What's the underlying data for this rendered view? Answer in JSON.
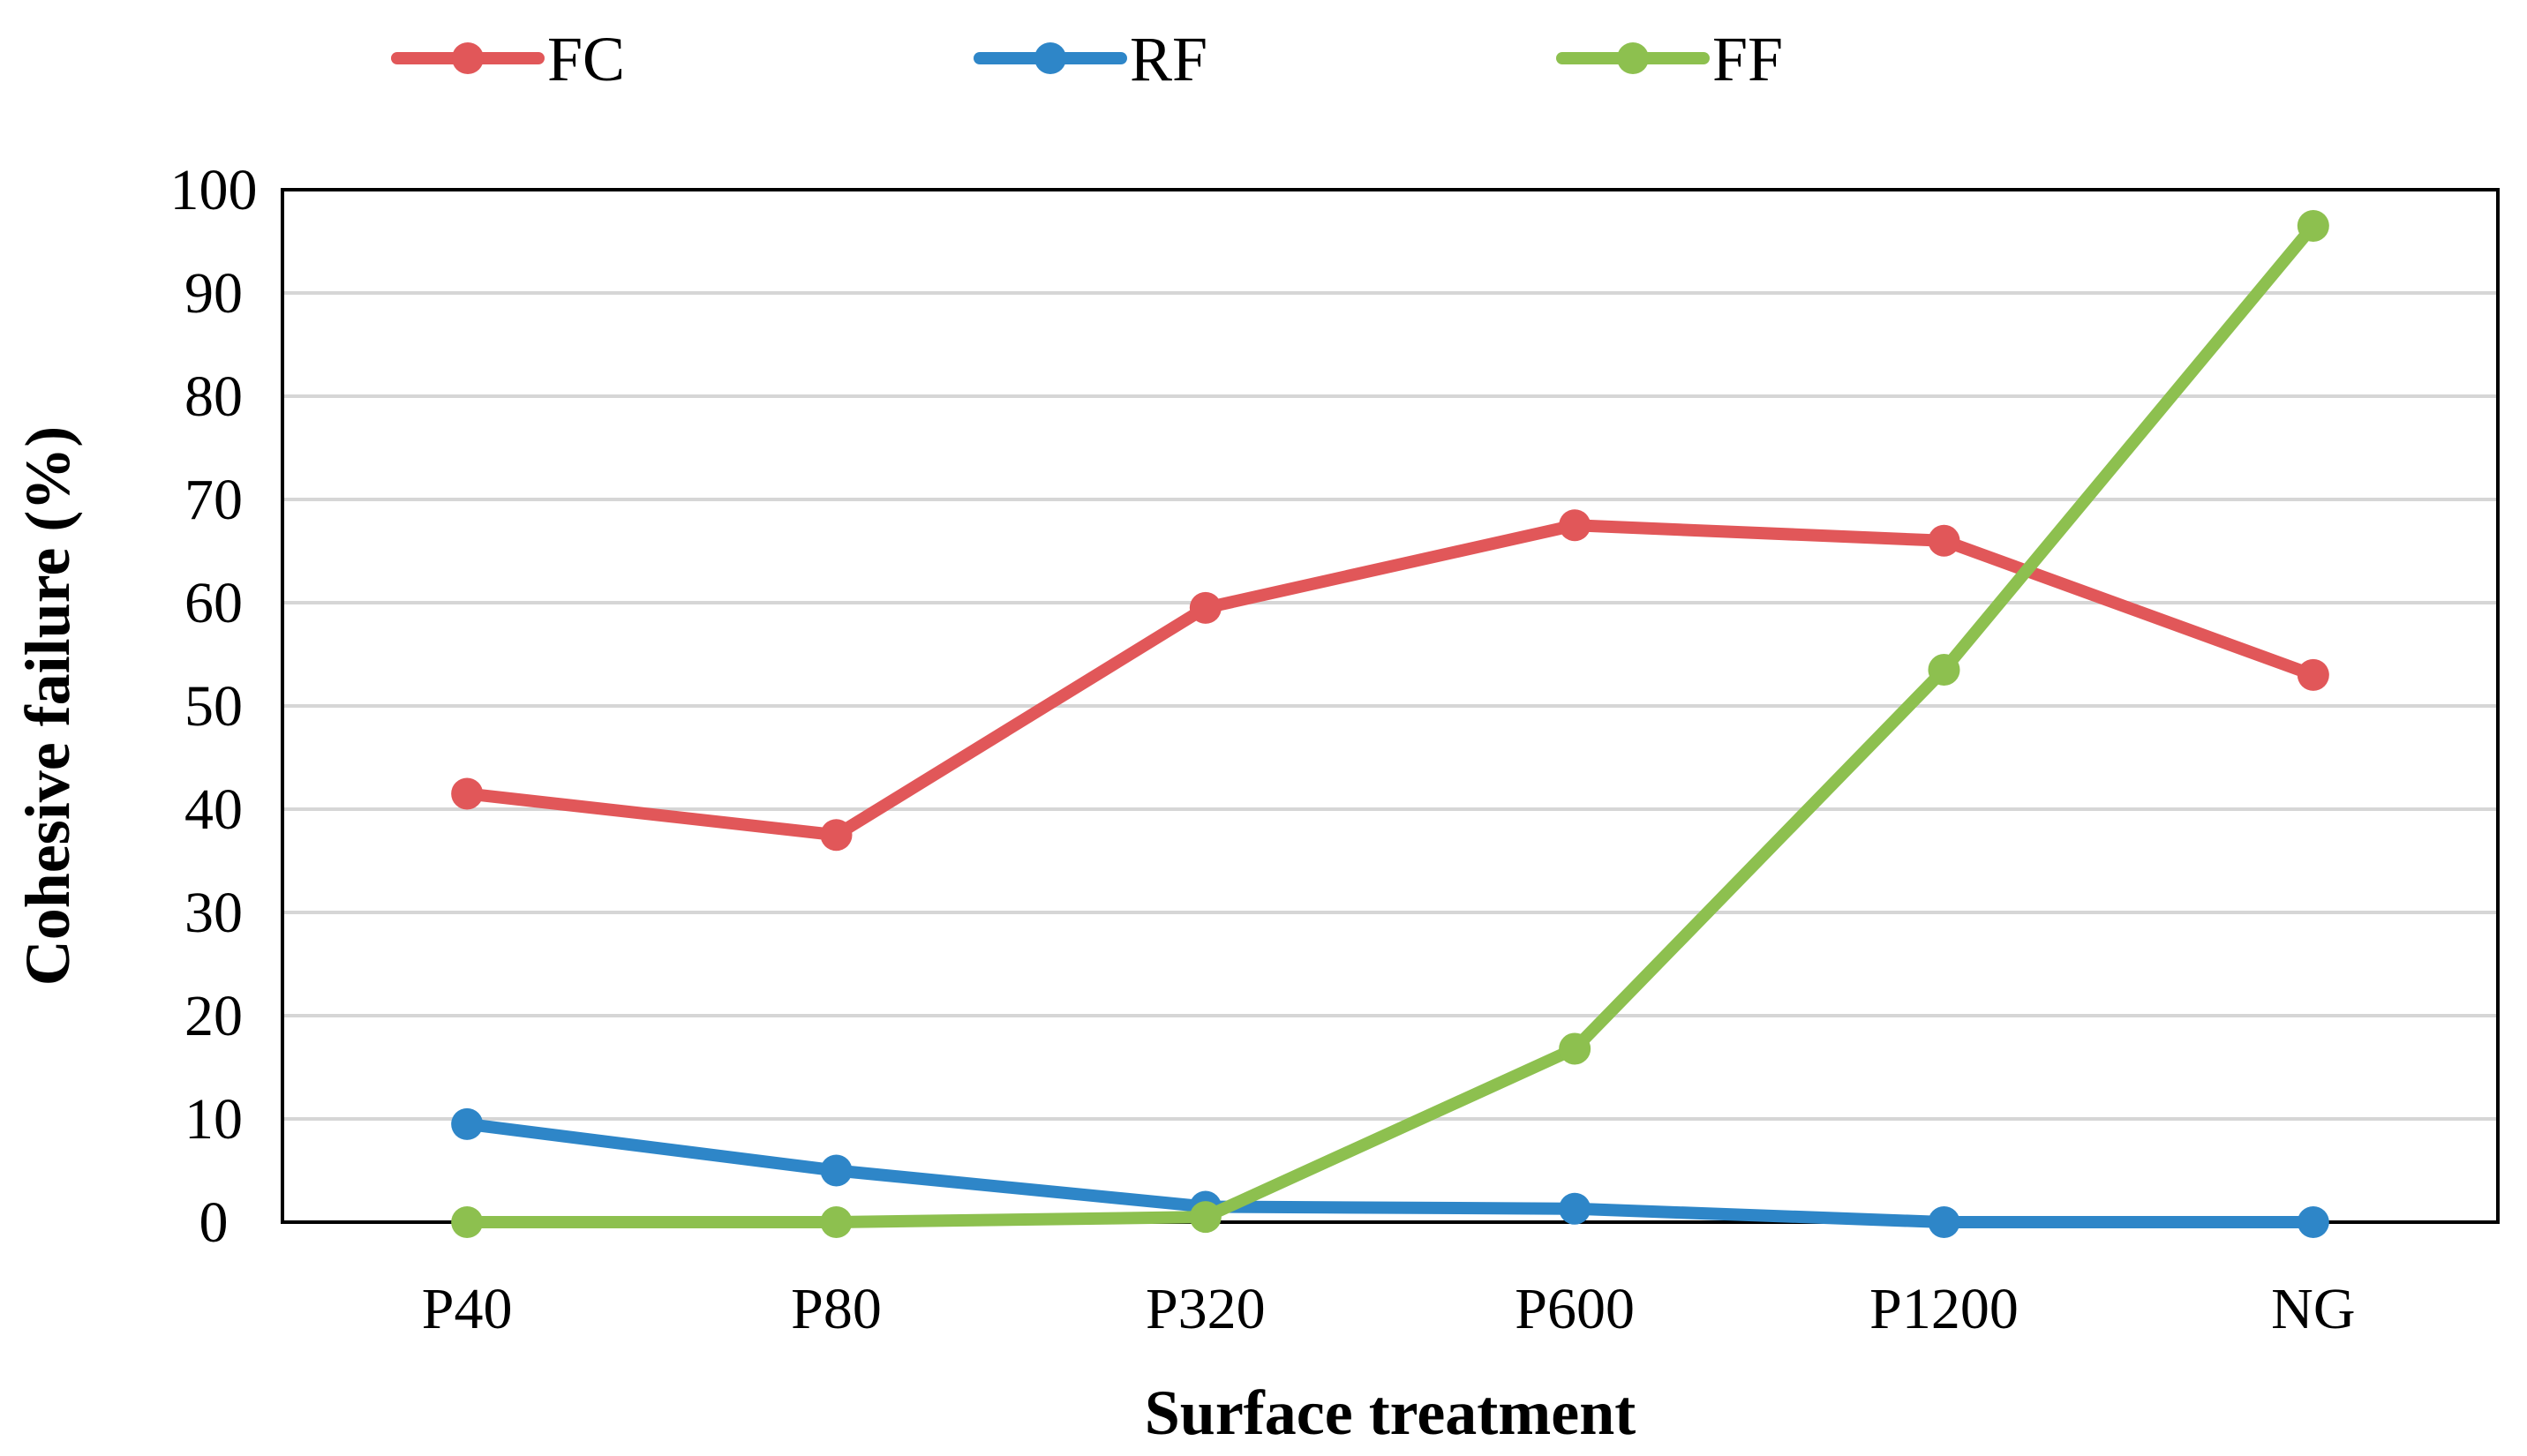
{
  "chart_data": {
    "type": "line",
    "title": "",
    "xlabel": "Surface treatment",
    "ylabel": "Cohesive failure (%)",
    "ylim": [
      0,
      100
    ],
    "ytick_step": 10,
    "grid": true,
    "legend_position": "top-center",
    "categories": [
      "P40",
      "P80",
      "P320",
      "P600",
      "P1200",
      "NG"
    ],
    "series": [
      {
        "name": "FC",
        "color": "#e15759",
        "values": [
          41.5,
          37.5,
          59.5,
          67.5,
          66,
          53
        ]
      },
      {
        "name": "RF",
        "color": "#2e86c8",
        "values": [
          9.5,
          5,
          1.5,
          1.3,
          0,
          0
        ]
      },
      {
        "name": "FF",
        "color": "#8dc04f",
        "values": [
          0,
          0,
          0.5,
          16.8,
          53.5,
          96.5
        ]
      }
    ]
  }
}
